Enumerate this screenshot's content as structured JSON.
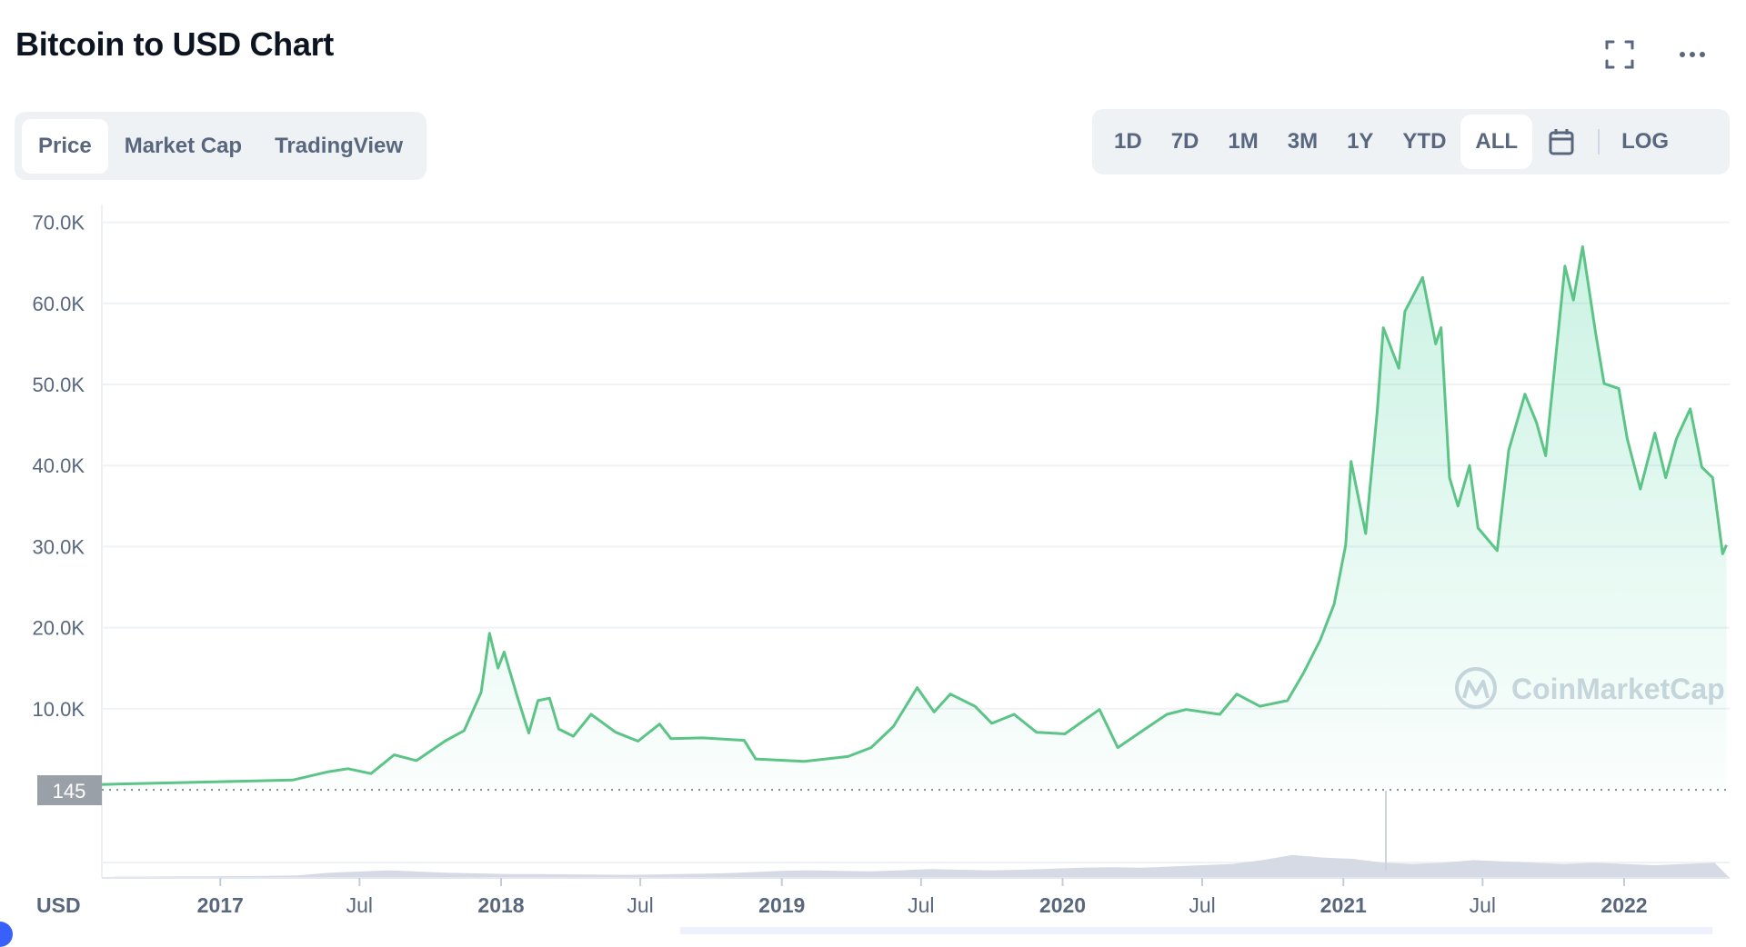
{
  "header": {
    "title": "Bitcoin to USD Chart",
    "icons": [
      "fullscreen-icon",
      "more-options-icon"
    ]
  },
  "view_tabs": [
    {
      "label": "Price",
      "active": true
    },
    {
      "label": "Market Cap",
      "active": false
    },
    {
      "label": "TradingView",
      "active": false
    }
  ],
  "ranges": [
    {
      "label": "1D",
      "active": false
    },
    {
      "label": "7D",
      "active": false
    },
    {
      "label": "1M",
      "active": false
    },
    {
      "label": "3M",
      "active": false
    },
    {
      "label": "1Y",
      "active": false
    },
    {
      "label": "YTD",
      "active": false
    },
    {
      "label": "ALL",
      "active": true
    }
  ],
  "calendar_icon": "calendar-icon",
  "log_label": "LOG",
  "colors": {
    "line": "#5cc487",
    "fill": "#16c784",
    "grid": "#eff2f5",
    "baseline_label_bg": "#9aa0a8",
    "volume": "#cfd3df",
    "watermark": "#cfd6e0"
  },
  "chart_data": {
    "type": "area",
    "title": "",
    "currency_label": "USD",
    "ylim": [
      0,
      70000
    ],
    "yticks": [
      "10.0K",
      "20.0K",
      "30.0K",
      "40.0K",
      "50.0K",
      "60.0K",
      "70.0K"
    ],
    "ytick_values": [
      10000,
      20000,
      30000,
      40000,
      50000,
      60000,
      70000
    ],
    "baseline_label": "145",
    "xticks": [
      {
        "label": "2017",
        "date": "2017-01-01",
        "major": true
      },
      {
        "label": "Jul",
        "date": "2017-07-01",
        "major": false
      },
      {
        "label": "2018",
        "date": "2018-01-01",
        "major": true
      },
      {
        "label": "Jul",
        "date": "2018-07-01",
        "major": false
      },
      {
        "label": "2019",
        "date": "2019-01-01",
        "major": true
      },
      {
        "label": "Jul",
        "date": "2019-07-01",
        "major": false
      },
      {
        "label": "2020",
        "date": "2020-01-01",
        "major": true
      },
      {
        "label": "Jul",
        "date": "2020-07-01",
        "major": false
      },
      {
        "label": "2021",
        "date": "2021-01-01",
        "major": true
      },
      {
        "label": "Jul",
        "date": "2021-07-01",
        "major": false
      },
      {
        "label": "2022",
        "date": "2022-01-01",
        "major": true
      }
    ],
    "xlim": [
      "2016-07-28",
      "2022-05-14"
    ],
    "grid": true,
    "watermark": "CoinMarketCap",
    "series": [
      {
        "dates": [
          "2016-07-28",
          "2017-01-01",
          "2017-04-05",
          "2017-05-20",
          "2017-06-16",
          "2017-07-16",
          "2017-08-15",
          "2017-09-13",
          "2017-10-20",
          "2017-11-14",
          "2017-12-06",
          "2017-12-17",
          "2017-12-28",
          "2018-01-05",
          "2018-01-22",
          "2018-02-06",
          "2018-02-18",
          "2018-03-05",
          "2018-03-17",
          "2018-04-05",
          "2018-04-28",
          "2018-05-30",
          "2018-06-28",
          "2018-07-26",
          "2018-08-10",
          "2018-09-20",
          "2018-11-13",
          "2018-11-28",
          "2019-01-30",
          "2019-03-28",
          "2019-04-27",
          "2019-05-26",
          "2019-06-26",
          "2019-07-18",
          "2019-08-08",
          "2019-09-09",
          "2019-10-01",
          "2019-10-30",
          "2019-11-28",
          "2020-01-04",
          "2020-02-18",
          "2020-03-13",
          "2020-04-16",
          "2020-05-16",
          "2020-06-10",
          "2020-07-24",
          "2020-08-15",
          "2020-09-14",
          "2020-10-20",
          "2020-11-10",
          "2020-12-02",
          "2020-12-20",
          "2021-01-04",
          "2021-01-11",
          "2021-01-30",
          "2021-02-14",
          "2021-02-22",
          "2021-03-14",
          "2021-03-22",
          "2021-04-14",
          "2021-05-01",
          "2021-05-08",
          "2021-05-19",
          "2021-05-30",
          "2021-06-14",
          "2021-06-25",
          "2021-07-20",
          "2021-08-04",
          "2021-08-25",
          "2021-09-09",
          "2021-09-21",
          "2021-10-16",
          "2021-10-27",
          "2021-11-08",
          "2021-11-25",
          "2021-12-06",
          "2021-12-25",
          "2022-01-05",
          "2022-01-22",
          "2022-02-10",
          "2022-02-24",
          "2022-03-10",
          "2022-03-28",
          "2022-04-12",
          "2022-04-26",
          "2022-05-09",
          "2022-05-14"
        ],
        "values": [
          650,
          1000,
          1200,
          2200,
          2600,
          2000,
          4300,
          3600,
          6000,
          7300,
          12000,
          19300,
          15000,
          17000,
          11500,
          7000,
          11000,
          11300,
          7500,
          6600,
          9300,
          7100,
          6000,
          8100,
          6300,
          6400,
          6100,
          3800,
          3500,
          4100,
          5200,
          7800,
          12600,
          9600,
          11800,
          10300,
          8200,
          9300,
          7100,
          6900,
          9900,
          5200,
          7400,
          9300,
          9900,
          9300,
          11800,
          10300,
          11000,
          14400,
          18500,
          22900,
          30200,
          40500,
          31600,
          46700,
          57000,
          52000,
          59000,
          63200,
          55000,
          57000,
          38500,
          35000,
          40000,
          32300,
          29500,
          41900,
          48800,
          45300,
          41200,
          64600,
          60400,
          67000,
          56300,
          50100,
          49500,
          43300,
          37100,
          44000,
          38500,
          43300,
          47000,
          39800,
          38500,
          29100,
          30200
        ]
      }
    ],
    "volume_relative": [
      0.05,
      0.05,
      0.06,
      0.06,
      0.07,
      0.08,
      0.1,
      0.2,
      0.25,
      0.3,
      0.25,
      0.2,
      0.18,
      0.15,
      0.15,
      0.14,
      0.13,
      0.12,
      0.14,
      0.16,
      0.18,
      0.22,
      0.28,
      0.3,
      0.28,
      0.26,
      0.3,
      0.35,
      0.32,
      0.3,
      0.32,
      0.36,
      0.4,
      0.42,
      0.4,
      0.45,
      0.5,
      0.55,
      0.7,
      0.9,
      0.8,
      0.75,
      0.6,
      0.55,
      0.6,
      0.7,
      0.65,
      0.6,
      0.55,
      0.6,
      0.55,
      0.5,
      0.55,
      0.6
    ]
  }
}
